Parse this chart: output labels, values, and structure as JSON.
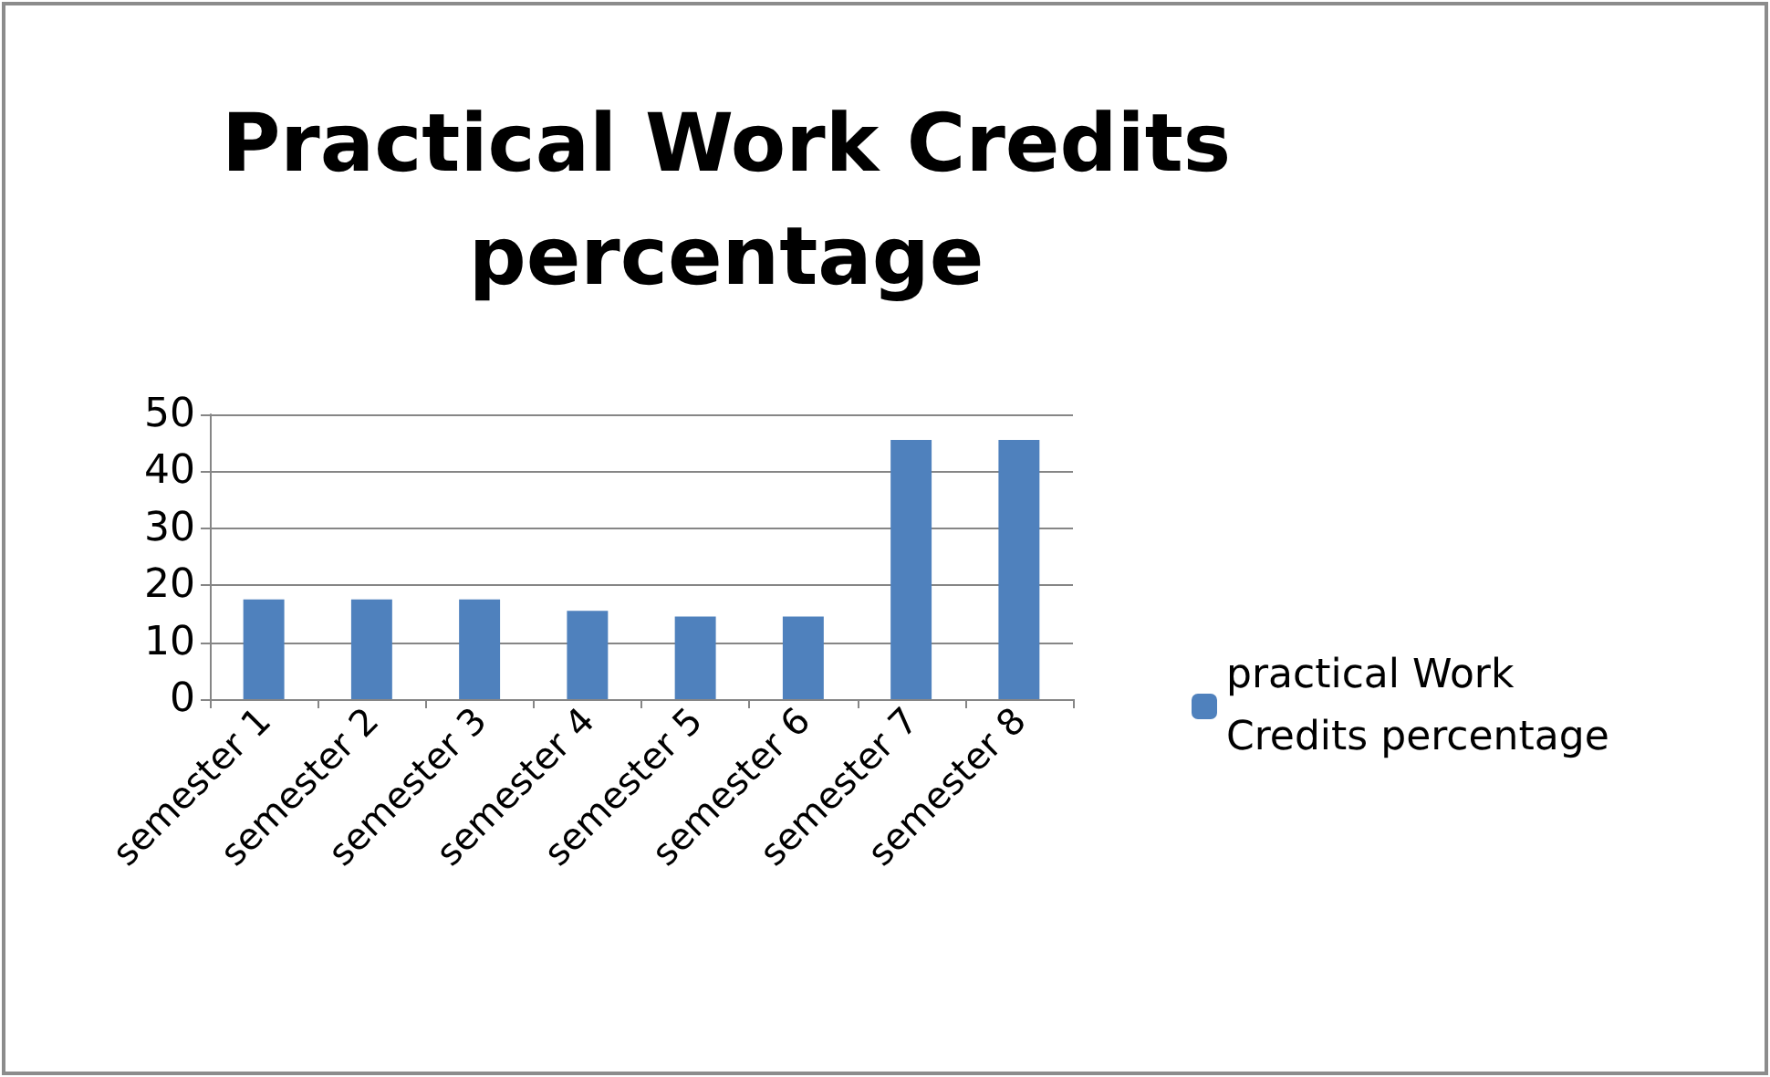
{
  "chart_data": {
    "type": "bar",
    "title": "Practical Work Credits\npercentage",
    "categories": [
      "semester 1",
      "semester 2",
      "semester 3",
      "semester 4",
      "semester 5",
      "semester 6",
      "semester 7",
      "semester 8"
    ],
    "series": [
      {
        "name": "practical Work Credits percentage",
        "color": "#4f81bd",
        "values": [
          17.5,
          17.5,
          17.5,
          15.5,
          14.5,
          14.5,
          45.5,
          45.5
        ]
      }
    ],
    "ylim": [
      0,
      50
    ],
    "yticks": [
      0,
      10,
      20,
      30,
      40,
      50
    ],
    "grid": "y",
    "legend": "right"
  }
}
